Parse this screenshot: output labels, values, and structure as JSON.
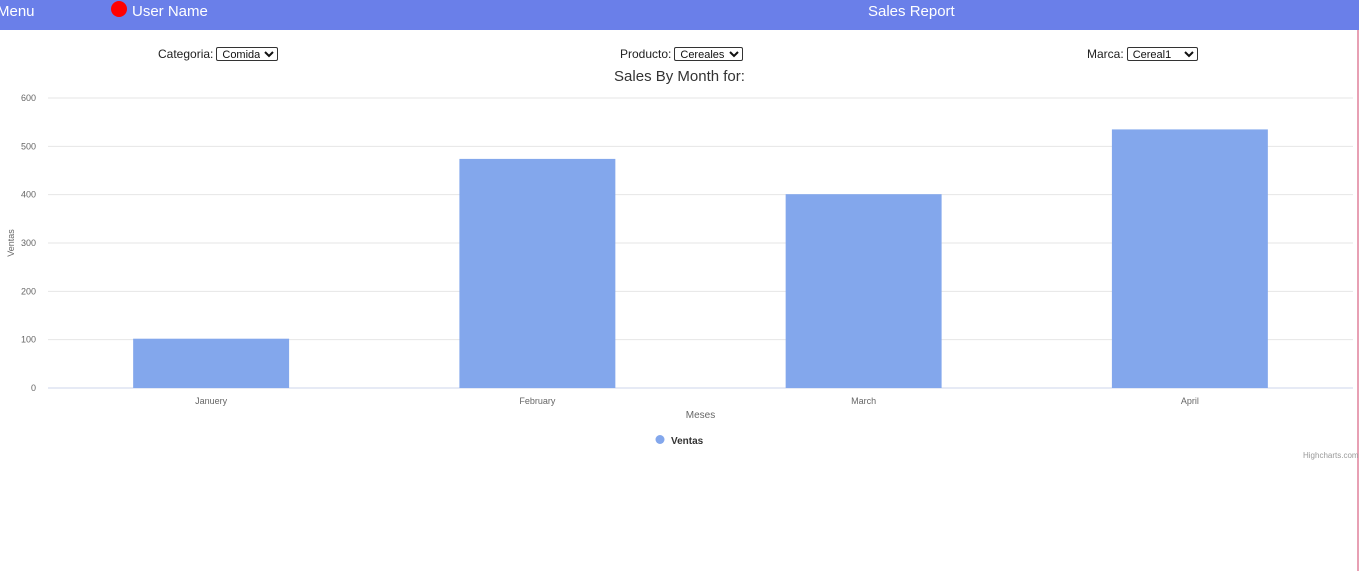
{
  "header": {
    "menu_label": "Menu",
    "user_name": "User Name",
    "page_title": "Sales Report",
    "status_color": "#ff0000",
    "bar_color": "#6a7fe9"
  },
  "filters": {
    "categoria": {
      "label": "Categoria:",
      "selected": "Comida"
    },
    "producto": {
      "label": "Producto:",
      "selected": "Cereales"
    },
    "marca": {
      "label": "Marca:",
      "selected": "Cereal1"
    }
  },
  "chart_data": {
    "type": "bar",
    "title": "Sales By Month for:",
    "categories": [
      "Januery",
      "February",
      "March",
      "April"
    ],
    "series": [
      {
        "name": "Ventas",
        "values": [
          102,
          474,
          401,
          535
        ],
        "color": "#83a7ec"
      }
    ],
    "xlabel": "Meses",
    "ylabel": "Ventas",
    "ylim": [
      0,
      600
    ],
    "yticks": [
      0,
      100,
      200,
      300,
      400,
      500,
      600
    ],
    "grid": true,
    "legend": "bottom-center",
    "credits": "Highcharts.com"
  }
}
